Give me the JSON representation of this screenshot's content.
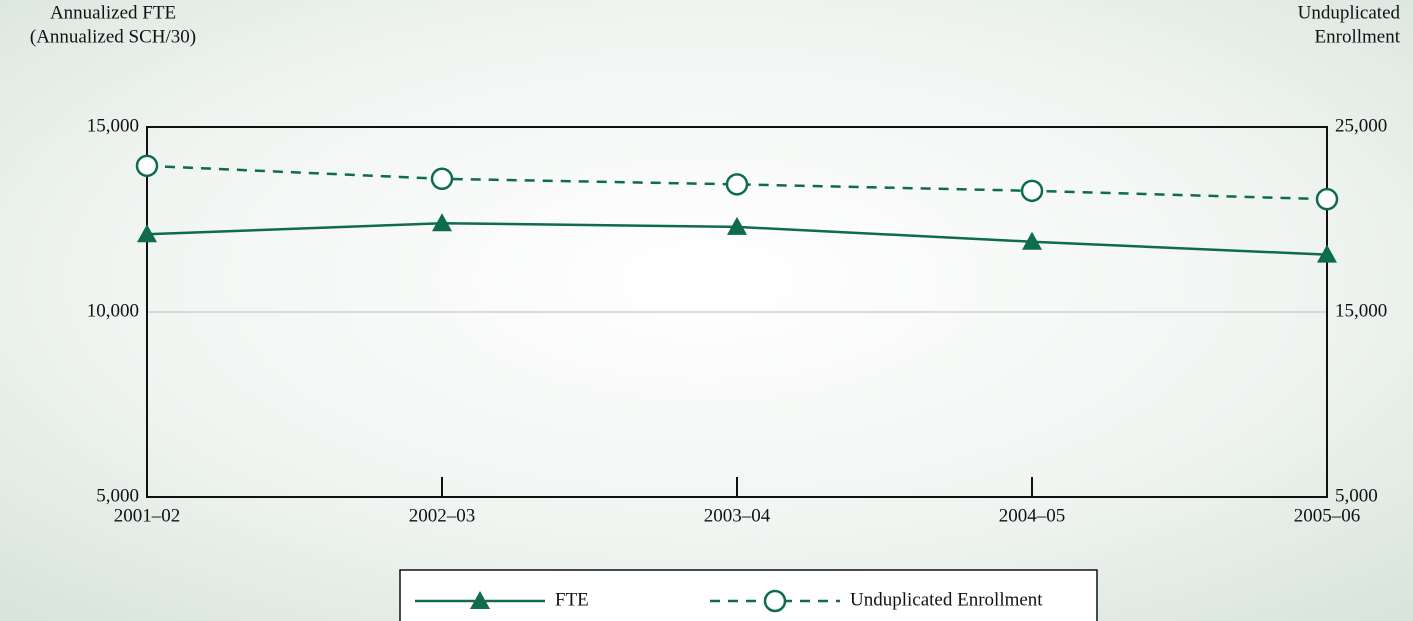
{
  "chart_data": {
    "type": "line",
    "ylabel": [
      "Annualized FTE",
      "(Annualized SCH/30)"
    ],
    "y2label": [
      "Unduplicated",
      "Enrollment"
    ],
    "categories": [
      "2001–02",
      "2002–03",
      "2003–04",
      "2004–05",
      "2005–06"
    ],
    "series": [
      {
        "name": "FTE",
        "color": "#0e6b4c",
        "marker": "triangle",
        "dashed": false,
        "values": [
          12100,
          12400,
          12300,
          11900,
          11550
        ]
      },
      {
        "name": "Unduplicated Enrollment",
        "color": "#0e6b4c",
        "marker": "circle",
        "dashed": true,
        "axis": "y2",
        "values": [
          22900,
          22200,
          21900,
          21550,
          21100
        ]
      }
    ],
    "ylim": [
      5000,
      15000
    ],
    "yticks": [
      {
        "value": 5000,
        "label": "5,000"
      },
      {
        "value": 10000,
        "label": "10,000"
      },
      {
        "value": 15000,
        "label": "15,000"
      }
    ],
    "y2lim": [
      5000,
      25000
    ],
    "y2ticks": [
      {
        "value": 5000,
        "label": "5,000"
      },
      {
        "value": 15000,
        "label": "15,000"
      },
      {
        "value": 25000,
        "label": "25,000"
      }
    ],
    "grid": true
  }
}
